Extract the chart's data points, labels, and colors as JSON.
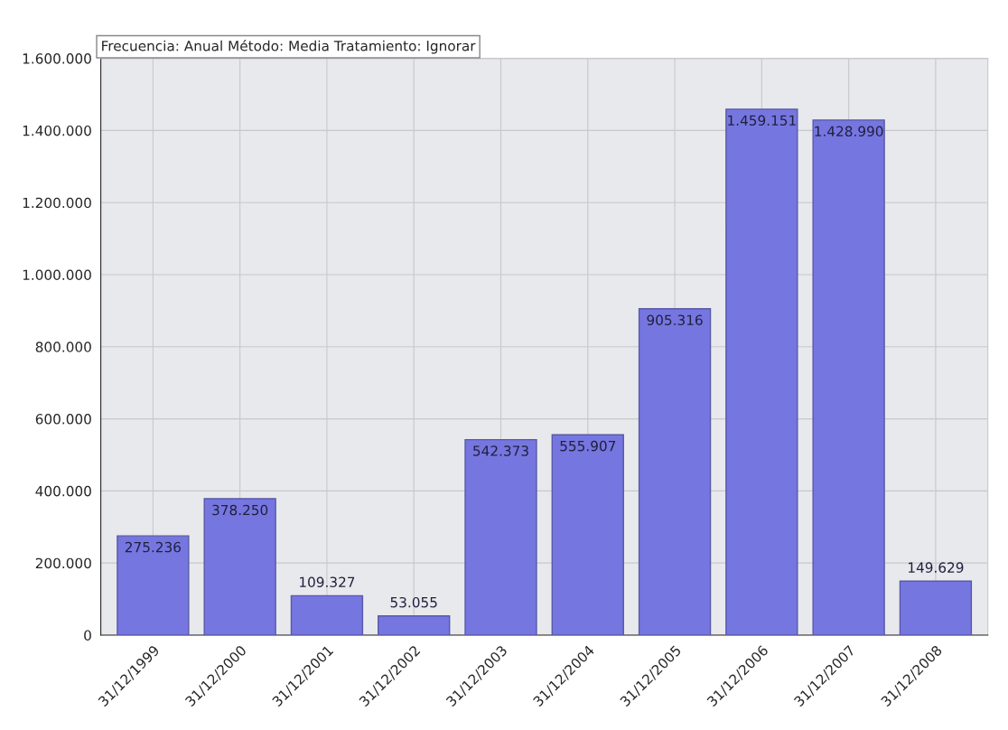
{
  "chart_data": {
    "type": "bar",
    "title": "Frecuencia: Anual Método: Media Tratamiento: Ignorar",
    "categories": [
      "31/12/1999",
      "31/12/2000",
      "31/12/2001",
      "31/12/2002",
      "31/12/2003",
      "31/12/2004",
      "31/12/2005",
      "31/12/2006",
      "31/12/2007",
      "31/12/2008"
    ],
    "values": [
      275236,
      378250,
      109327,
      53055,
      542373,
      555907,
      905316,
      1459151,
      1428990,
      149629
    ],
    "value_labels": [
      "275.236",
      "378.250",
      "109.327",
      "53.055",
      "542.373",
      "555.907",
      "905.316",
      "1.459.151",
      "1.428.990",
      "149.629"
    ],
    "color": "#7676e0",
    "ylim": [
      0,
      1600000
    ],
    "yticks": [
      {
        "value": 0,
        "label": "0"
      },
      {
        "value": 200000,
        "label": "200.000"
      },
      {
        "value": 400000,
        "label": "400.000"
      },
      {
        "value": 600000,
        "label": "600.000"
      },
      {
        "value": 800000,
        "label": "800.000"
      },
      {
        "value": 1000000,
        "label": "1.000.000"
      },
      {
        "value": 1200000,
        "label": "1.200.000"
      },
      {
        "value": 1400000,
        "label": "1.400.000"
      },
      {
        "value": 1600000,
        "label": "1.600.000"
      }
    ],
    "grid": true
  }
}
